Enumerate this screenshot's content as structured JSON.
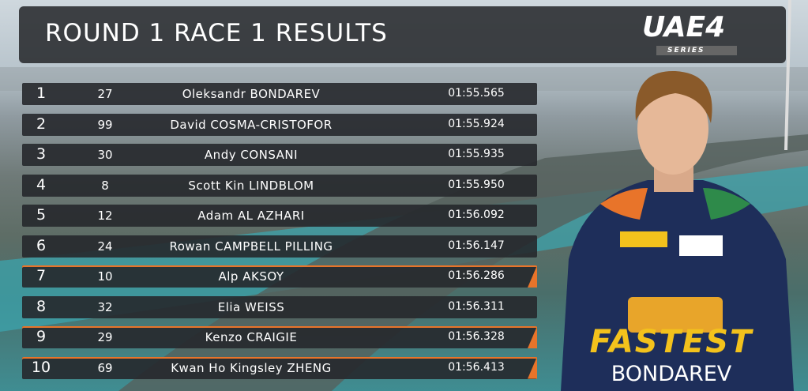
{
  "header": {
    "title": "ROUND 1 RACE 1 RESULTS",
    "logo": {
      "name": "UAE4",
      "subtitle": "SERIES"
    }
  },
  "table": {
    "rows": [
      [
        "1",
        "27",
        "Oleksandr BONDAREV",
        "01:55.565"
      ],
      [
        "2",
        "99",
        "David COSMA-CRISTOFOR",
        "01:55.924"
      ],
      [
        "3",
        "30",
        "Andy CONSANI",
        "01:55.935"
      ],
      [
        "4",
        "8",
        "Scott Kin LINDBLOM",
        "01:55.950"
      ],
      [
        "5",
        "12",
        "Adam AL AZHARI",
        "01:56.092"
      ],
      [
        "6",
        "24",
        "Rowan CAMPBELL PILLING",
        "01:56.147"
      ],
      [
        "7",
        "10",
        "Alp AKSOY",
        "01:56.286"
      ],
      [
        "8",
        "32",
        "Elia WEISS",
        "01:56.311"
      ],
      [
        "9",
        "29",
        "Kenzo CRAIGIE",
        "01:56.328"
      ],
      [
        "10",
        "69",
        "Kwan Ho Kingsley ZHENG",
        "01:56.413"
      ]
    ]
  },
  "fastest": {
    "label": "FASTEST",
    "driver": "BONDAREV"
  }
}
